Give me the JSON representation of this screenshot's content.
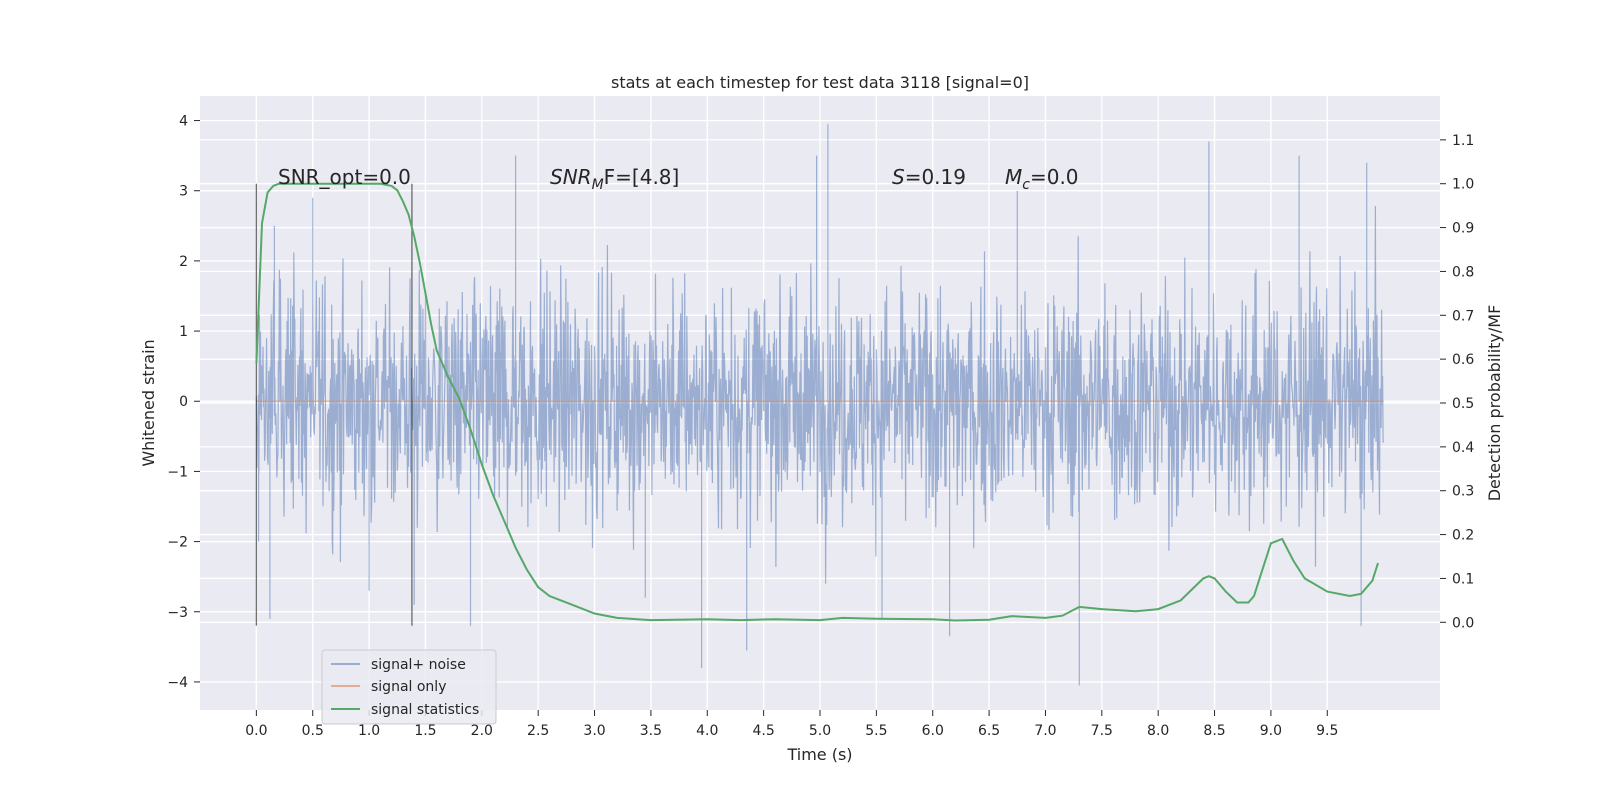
{
  "chart_data": {
    "type": "line",
    "title": "stats at each timestep for test data 3118 [signal=0]",
    "xlabel": "Time (s)",
    "ylabel": "Whitened strain",
    "y2label": "Detection probability/MF",
    "xlim": [
      -0.5,
      10.5
    ],
    "ylim": [
      -4.4,
      4.35
    ],
    "y2lim": [
      -0.2,
      1.2
    ],
    "xticks": [
      "0.0",
      "0.5",
      "1.0",
      "1.5",
      "2.0",
      "2.5",
      "3.0",
      "3.5",
      "4.0",
      "4.5",
      "5.0",
      "5.5",
      "6.0",
      "6.5",
      "7.0",
      "7.5",
      "8.0",
      "8.5",
      "9.0",
      "9.5"
    ],
    "yticks": [
      "4",
      "3",
      "2",
      "1",
      "0",
      "−1",
      "−2",
      "−3",
      "−4"
    ],
    "y2ticks": [
      "1.1",
      "1.0",
      "0.9",
      "0.8",
      "0.7",
      "0.6",
      "0.5",
      "0.4",
      "0.3",
      "0.2",
      "0.1",
      "0.0"
    ],
    "grid": true,
    "legend_position": "lower-left",
    "annotations": {
      "snr_opt": "SNR_opt=0.0",
      "snr_mf_main": "SNR",
      "snr_mf_sub": "M",
      "snr_mf_rest": "F=[4.8]",
      "s_var": "S",
      "s_val": "=0.19",
      "mc_var": "M",
      "mc_sub": "c",
      "mc_val": "=0.0"
    },
    "markers": {
      "vlines_x": [
        0.0,
        1.38
      ],
      "ymin": -3.2,
      "ymax": 3.1
    },
    "series": [
      {
        "name": "signal+ noise",
        "color": "#4c72b0",
        "note": "whitened strain noise, approx. |y| up to 3.5 over 0.0 to 10.0 s",
        "t_range": [
          0.0,
          10.0
        ],
        "spikes": [
          {
            "x": 0.02,
            "y": -2.0
          },
          {
            "x": 0.12,
            "y": -3.1
          },
          {
            "x": 0.16,
            "y": 2.5
          },
          {
            "x": 0.5,
            "y": 2.9
          },
          {
            "x": 1.0,
            "y": -2.7
          },
          {
            "x": 1.4,
            "y": -2.9
          },
          {
            "x": 1.9,
            "y": -3.2
          },
          {
            "x": 2.3,
            "y": 3.5
          },
          {
            "x": 3.45,
            "y": -2.8
          },
          {
            "x": 3.95,
            "y": -3.8
          },
          {
            "x": 4.35,
            "y": -3.55
          },
          {
            "x": 4.97,
            "y": 3.5
          },
          {
            "x": 5.07,
            "y": 3.95
          },
          {
            "x": 5.55,
            "y": -3.1
          },
          {
            "x": 6.15,
            "y": -3.35
          },
          {
            "x": 6.75,
            "y": 3.0
          },
          {
            "x": 7.3,
            "y": -4.05
          },
          {
            "x": 8.45,
            "y": 3.7
          },
          {
            "x": 9.25,
            "y": 3.5
          },
          {
            "x": 9.8,
            "y": -3.2
          },
          {
            "x": 9.85,
            "y": 3.4
          }
        ]
      },
      {
        "name": "signal only",
        "color": "#dd8452",
        "x": [
          0.0,
          10.0
        ],
        "y": [
          0.0,
          0.0
        ]
      },
      {
        "name": "signal statistics",
        "color": "#55a868",
        "axis": "right",
        "x": [
          0.0,
          0.05,
          0.1,
          0.15,
          0.2,
          0.3,
          0.5,
          0.8,
          1.0,
          1.1,
          1.2,
          1.25,
          1.3,
          1.35,
          1.4,
          1.45,
          1.5,
          1.55,
          1.6,
          1.7,
          1.8,
          1.9,
          2.0,
          2.1,
          2.2,
          2.3,
          2.4,
          2.5,
          2.6,
          2.8,
          3.0,
          3.2,
          3.5,
          4.0,
          4.3,
          4.6,
          5.0,
          5.2,
          5.5,
          6.0,
          6.2,
          6.5,
          6.7,
          7.0,
          7.15,
          7.3,
          7.5,
          7.8,
          8.0,
          8.2,
          8.3,
          8.4,
          8.45,
          8.5,
          8.6,
          8.7,
          8.8,
          8.85,
          8.9,
          9.0,
          9.1,
          9.2,
          9.3,
          9.5,
          9.7,
          9.8,
          9.9,
          9.95
        ],
        "y": [
          0.59,
          0.91,
          0.98,
          0.995,
          1.0,
          1.0,
          1.0,
          1.0,
          1.0,
          1.0,
          0.995,
          0.985,
          0.96,
          0.93,
          0.88,
          0.82,
          0.75,
          0.68,
          0.62,
          0.56,
          0.51,
          0.44,
          0.36,
          0.29,
          0.23,
          0.17,
          0.12,
          0.08,
          0.06,
          0.04,
          0.02,
          0.01,
          0.005,
          0.007,
          0.005,
          0.007,
          0.005,
          0.01,
          0.008,
          0.007,
          0.004,
          0.006,
          0.014,
          0.01,
          0.015,
          0.035,
          0.03,
          0.025,
          0.03,
          0.05,
          0.075,
          0.1,
          0.105,
          0.1,
          0.07,
          0.045,
          0.045,
          0.06,
          0.1,
          0.18,
          0.19,
          0.14,
          0.1,
          0.07,
          0.06,
          0.065,
          0.095,
          0.135
        ]
      }
    ]
  }
}
